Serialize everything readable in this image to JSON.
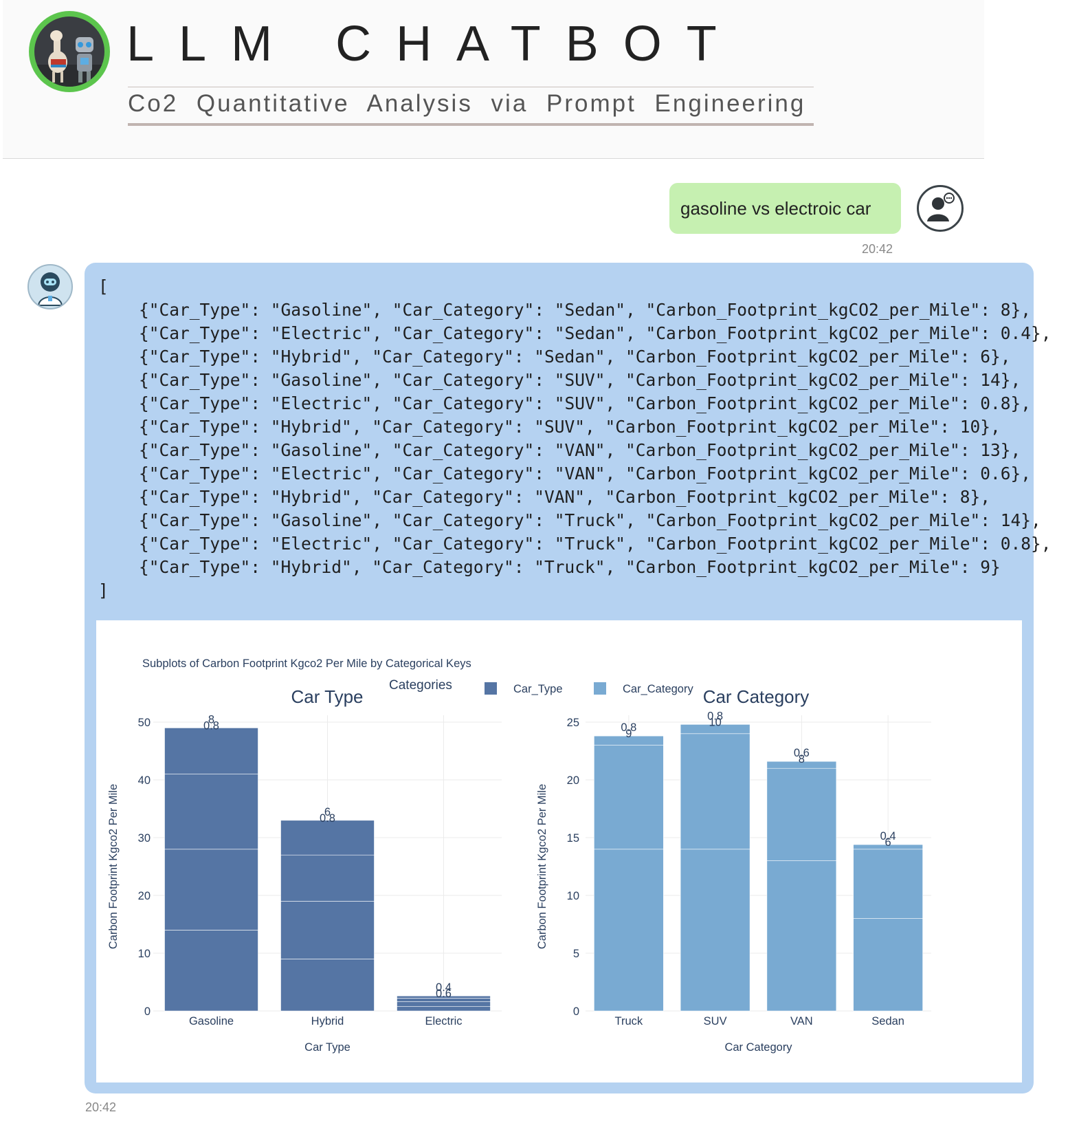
{
  "header": {
    "title": "LLM CHATBOT",
    "subtitle": "Co2 Quantitative Analysis via Prompt Engineering"
  },
  "chat": {
    "user_message": {
      "text": "gasoline vs electroic car",
      "time": "20:42"
    },
    "bot_message": {
      "time": "20:42",
      "code_open": "[",
      "code_lines": [
        "{\"Car_Type\": \"Gasoline\", \"Car_Category\": \"Sedan\", \"Carbon_Footprint_kgCO2_per_Mile\": 8},",
        "{\"Car_Type\": \"Electric\", \"Car_Category\": \"Sedan\", \"Carbon_Footprint_kgCO2_per_Mile\": 0.4},",
        "{\"Car_Type\": \"Hybrid\", \"Car_Category\": \"Sedan\", \"Carbon_Footprint_kgCO2_per_Mile\": 6},",
        "{\"Car_Type\": \"Gasoline\", \"Car_Category\": \"SUV\", \"Carbon_Footprint_kgCO2_per_Mile\": 14},",
        "{\"Car_Type\": \"Electric\", \"Car_Category\": \"SUV\", \"Carbon_Footprint_kgCO2_per_Mile\": 0.8},",
        "{\"Car_Type\": \"Hybrid\", \"Car_Category\": \"SUV\", \"Carbon_Footprint_kgCO2_per_Mile\": 10},",
        "{\"Car_Type\": \"Gasoline\", \"Car_Category\": \"VAN\", \"Carbon_Footprint_kgCO2_per_Mile\": 13},",
        "{\"Car_Type\": \"Electric\", \"Car_Category\": \"VAN\", \"Carbon_Footprint_kgCO2_per_Mile\": 0.6},",
        "{\"Car_Type\": \"Hybrid\", \"Car_Category\": \"VAN\", \"Carbon_Footprint_kgCO2_per_Mile\": 8},",
        "{\"Car_Type\": \"Gasoline\", \"Car_Category\": \"Truck\", \"Carbon_Footprint_kgCO2_per_Mile\": 14},",
        "{\"Car_Type\": \"Electric\", \"Car_Category\": \"Truck\", \"Carbon_Footprint_kgCO2_per_Mile\": 0.8},",
        "{\"Car_Type\": \"Hybrid\", \"Car_Category\": \"Truck\", \"Carbon_Footprint_kgCO2_per_Mile\": 9}"
      ],
      "code_close": "]"
    }
  },
  "chart_data": {
    "title": "Subplots of Carbon Footprint Kgco2 Per Mile by Categorical Keys",
    "legend": {
      "title": "Categories",
      "position": "top-center",
      "entries": [
        {
          "name": "Car_Type",
          "color": "#5575a4"
        },
        {
          "name": "Car_Category",
          "color": "#79aad2"
        }
      ]
    },
    "subplots": [
      {
        "type": "bar",
        "stacked": true,
        "subtitle": "Car Type",
        "xlabel": "Car Type",
        "ylabel": "Carbon Footprint Kgco2 Per Mile",
        "ylim": [
          0,
          50
        ],
        "yticks": [
          0,
          10,
          20,
          30,
          40,
          50
        ],
        "grid": true,
        "color": "#5575a4",
        "categories": [
          "Gasoline",
          "Hybrid",
          "Electric"
        ],
        "stacks": [
          [
            14,
            14,
            13,
            8
          ],
          [
            9,
            10,
            8,
            6
          ],
          [
            0.8,
            0.8,
            0.6,
            0.4
          ]
        ],
        "top_labels": [
          "8",
          "6",
          "0.4"
        ],
        "overlap_labels": [
          "0.8",
          "0.8",
          "0.6"
        ]
      },
      {
        "type": "bar",
        "stacked": true,
        "subtitle": "Car Category",
        "xlabel": "Car Category",
        "ylabel": "Carbon Footprint Kgco2 Per Mile",
        "ylim": [
          0,
          25
        ],
        "yticks": [
          0,
          5,
          10,
          15,
          20,
          25
        ],
        "grid": true,
        "color": "#79aad2",
        "categories": [
          "Truck",
          "SUV",
          "VAN",
          "Sedan"
        ],
        "stacks": [
          [
            14,
            9,
            0.8
          ],
          [
            14,
            10,
            0.8
          ],
          [
            13,
            8,
            0.6
          ],
          [
            8,
            6,
            0.4
          ]
        ],
        "top_labels": [
          "0.8",
          "0.8",
          "0.6",
          "0.4"
        ],
        "overlap_labels": [
          "9",
          "10",
          "8",
          "6"
        ]
      }
    ]
  }
}
